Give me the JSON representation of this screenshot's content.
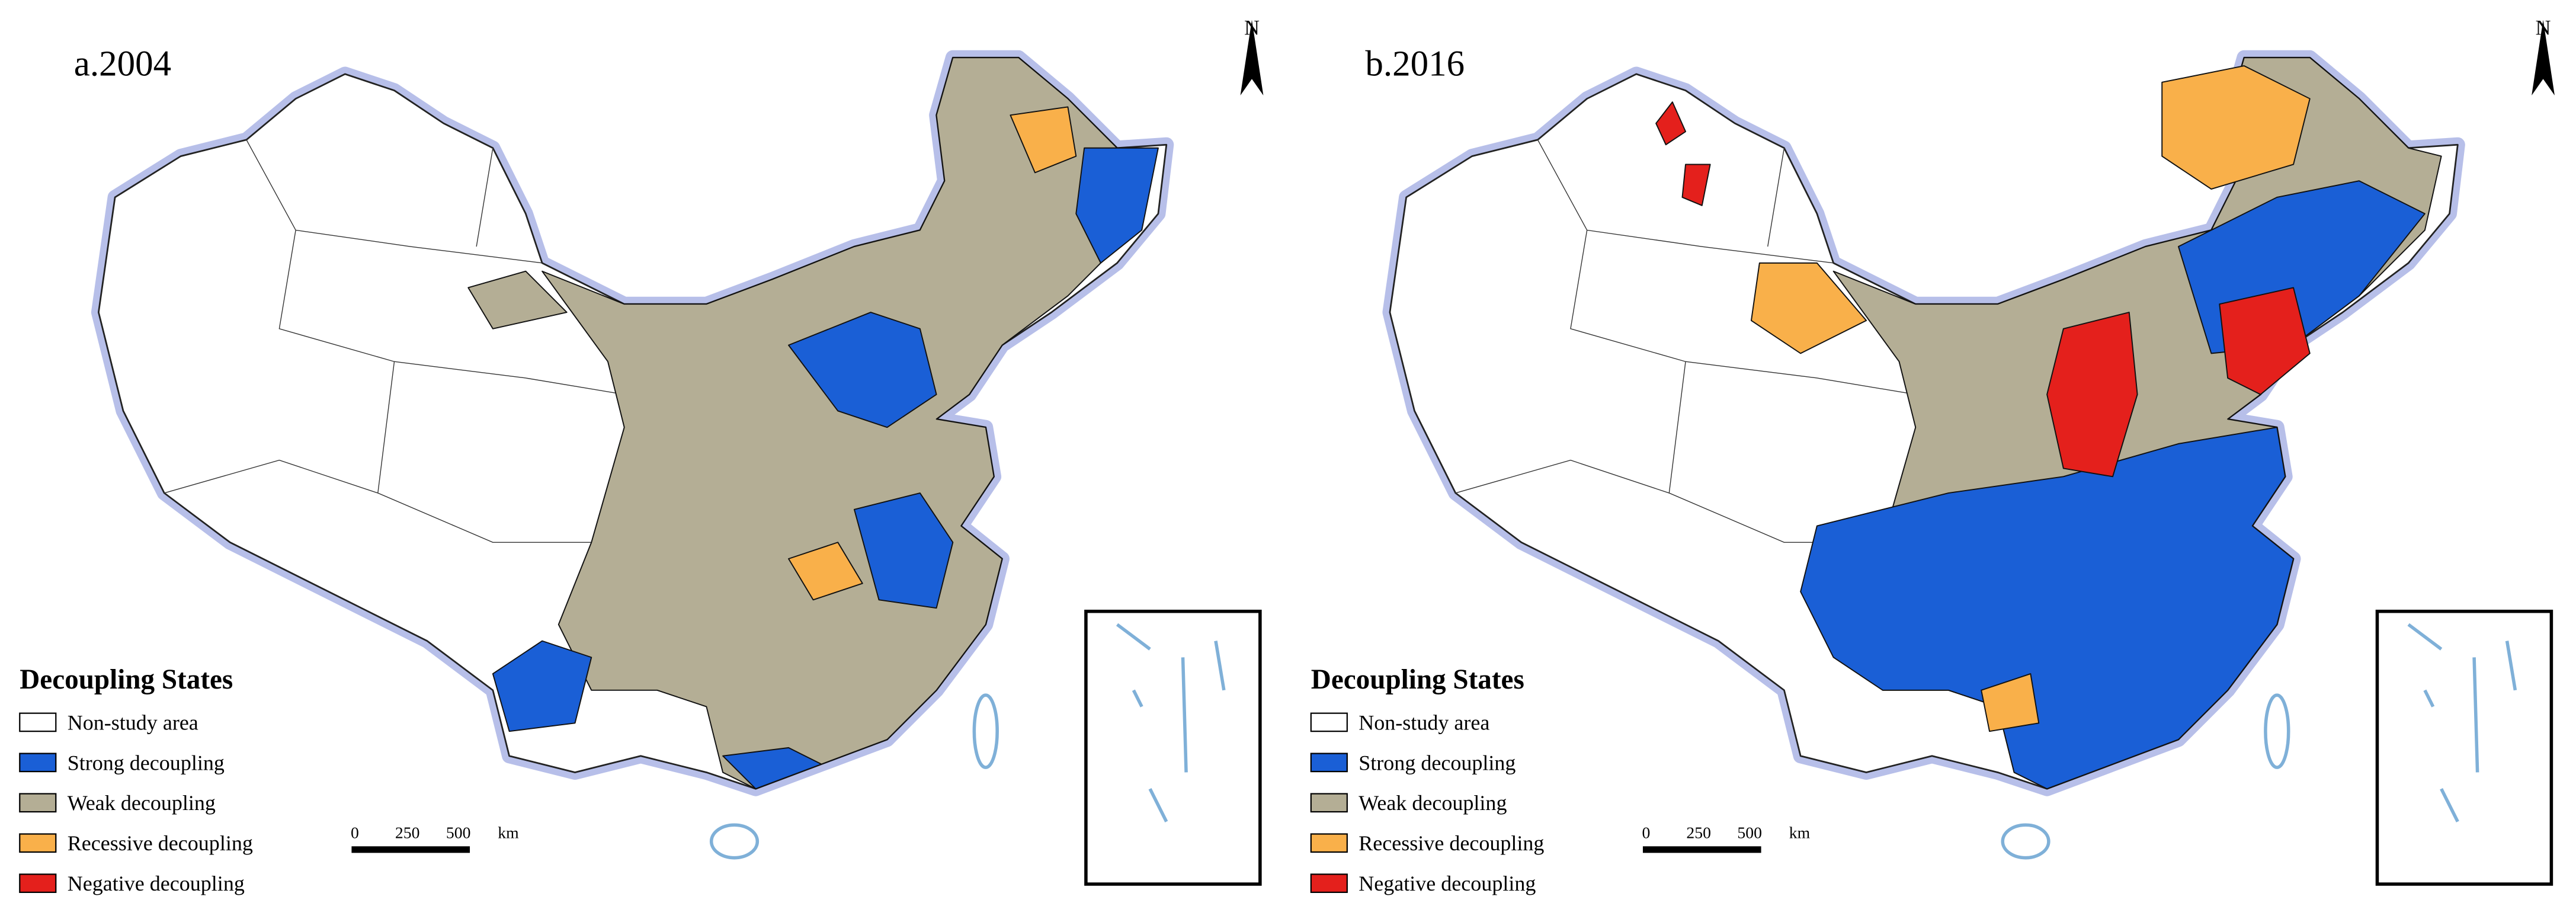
{
  "panels": [
    {
      "title": "a.2004",
      "north": "N",
      "legend": {
        "title": "Decoupling States",
        "items": [
          {
            "label": "Non-study area",
            "color": "#ffffff"
          },
          {
            "label": "Strong decoupling",
            "color": "#1a5fd6"
          },
          {
            "label": "Weak decoupling",
            "color": "#b4ae95"
          },
          {
            "label": "Recessive decoupling",
            "color": "#f9b04a"
          },
          {
            "label": "Negative decoupling",
            "color": "#e4201c"
          }
        ]
      },
      "scale_bar": {
        "labels": [
          "0",
          "250",
          "500",
          "km"
        ]
      }
    },
    {
      "title": "b.2016",
      "north": "N",
      "legend": {
        "title": "Decoupling States",
        "items": [
          {
            "label": "Non-study area",
            "color": "#ffffff"
          },
          {
            "label": "Strong decoupling",
            "color": "#1a5fd6"
          },
          {
            "label": "Weak decoupling",
            "color": "#b4ae95"
          },
          {
            "label": "Recessive decoupling",
            "color": "#f9b04a"
          },
          {
            "label": "Negative decoupling",
            "color": "#e4201c"
          }
        ]
      },
      "scale_bar": {
        "labels": [
          "0",
          "250",
          "500",
          "km"
        ]
      }
    }
  ]
}
